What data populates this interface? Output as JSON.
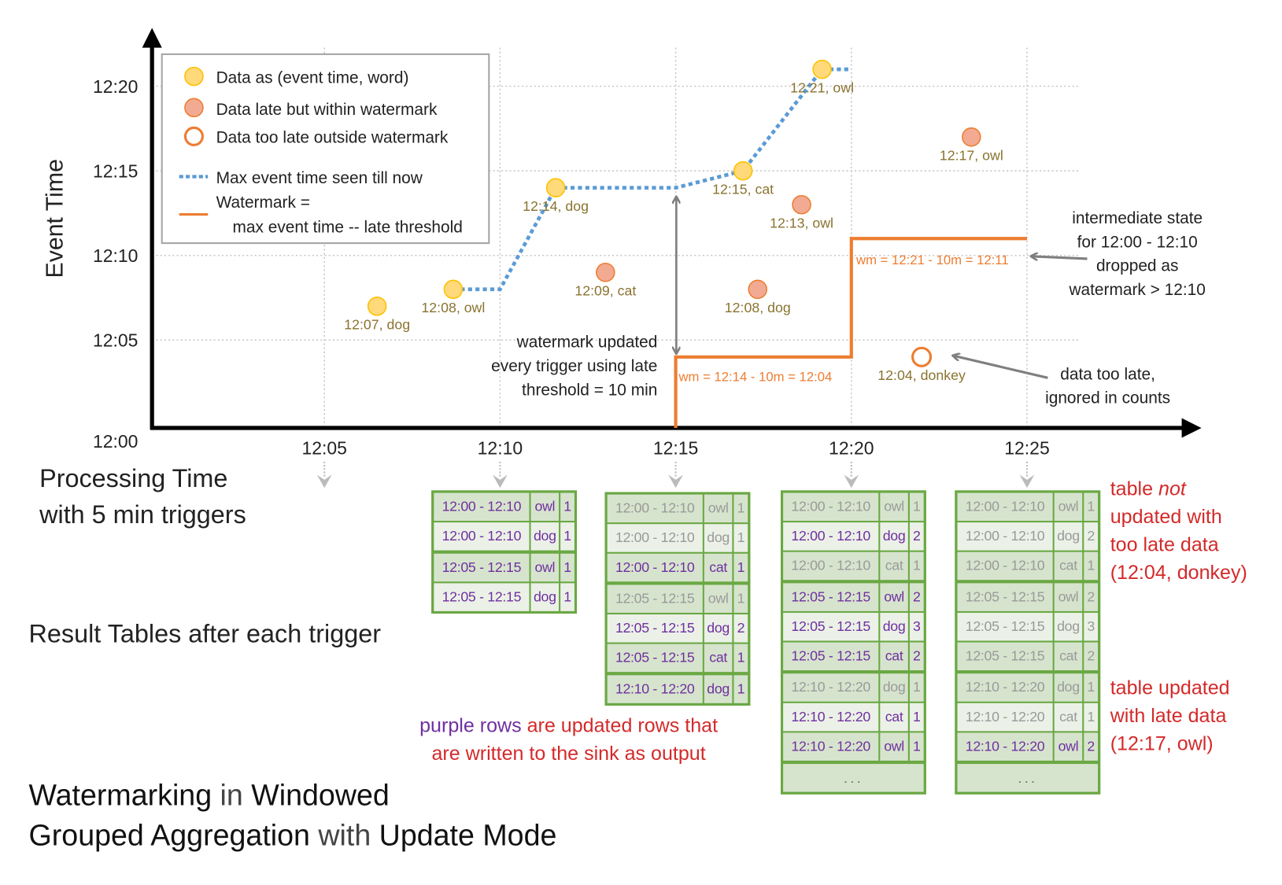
{
  "colors": {
    "on_time_point": "#ffd97a",
    "late_point": "#f2ab92",
    "too_late_stroke": "#ed7d31",
    "max_event_line": "#5b9bd5",
    "watermark_line": "#ed7d31",
    "point_label": "#8a7330",
    "updated_row_text": "#7030a0",
    "note_text": "#d42a2a",
    "table_border": "#6aa843"
  },
  "axes": {
    "y_label": "Event Time",
    "y_ticks": [
      "12:00",
      "12:05",
      "12:10",
      "12:15",
      "12:20"
    ],
    "x_ticks": [
      "12:05",
      "12:10",
      "12:15",
      "12:20",
      "12:25"
    ],
    "x_label_line1": "Processing Time",
    "x_label_line2": "with 5 min triggers"
  },
  "legend": {
    "on_time": "Data as (event time, word)",
    "late": "Data late but within watermark",
    "too_late": "Data too late outside watermark",
    "max_event": "Max event time seen till now",
    "watermark_line1": "Watermark =",
    "watermark_line2": "max event time -- late threshold"
  },
  "points": [
    {
      "label": "12:07, dog",
      "event_time": "12:07",
      "processing_time": "12:06:30",
      "kind": "on_time"
    },
    {
      "label": "12:08, owl",
      "event_time": "12:08",
      "processing_time": "12:08:40",
      "kind": "on_time"
    },
    {
      "label": "12:14, dog",
      "event_time": "12:14",
      "processing_time": "12:11:35",
      "kind": "on_time"
    },
    {
      "label": "12:09, cat",
      "event_time": "12:09",
      "processing_time": "12:13:00",
      "kind": "late"
    },
    {
      "label": "12:15, cat",
      "event_time": "12:15",
      "processing_time": "12:16:55",
      "kind": "on_time"
    },
    {
      "label": "12:08, dog",
      "event_time": "12:08",
      "processing_time": "12:17:20",
      "kind": "late"
    },
    {
      "label": "12:13, owl",
      "event_time": "12:13",
      "processing_time": "12:18:35",
      "kind": "late"
    },
    {
      "label": "12:21, owl",
      "event_time": "12:21",
      "processing_time": "12:19:10",
      "kind": "on_time"
    },
    {
      "label": "12:04, donkey",
      "event_time": "12:04",
      "processing_time": "12:22:00",
      "kind": "too_late"
    },
    {
      "label": "12:17, owl",
      "event_time": "12:17",
      "processing_time": "12:23:25",
      "kind": "late"
    }
  ],
  "max_event_line": [
    [
      "12:08:40",
      "12:08"
    ],
    [
      "12:10:00",
      "12:08"
    ],
    [
      "12:11:35",
      "12:14"
    ],
    [
      "12:15:00",
      "12:14"
    ],
    [
      "12:16:55",
      "12:15"
    ],
    [
      "12:19:10",
      "12:21"
    ],
    [
      "12:20:00",
      "12:21"
    ]
  ],
  "watermark_line": [
    [
      "12:15:00",
      "12:00"
    ],
    [
      "12:15:00",
      "12:04"
    ],
    [
      "12:20:00",
      "12:04"
    ],
    [
      "12:20:00",
      "12:11"
    ],
    [
      "12:25:00",
      "12:11"
    ]
  ],
  "annotations": {
    "wm1": "wm = 12:14 - 10m = 12:04",
    "wm2": "wm = 12:21 - 10m = 12:11",
    "wm_updated": [
      "watermark updated",
      "every trigger using late",
      "threshold = 10 min"
    ],
    "intermediate": [
      "intermediate state",
      "for 12:00 - 12:10",
      "dropped as",
      "watermark > 12:10"
    ],
    "too_late": [
      "data too late,",
      "ignored in counts"
    ]
  },
  "result_tables_label": "Result Tables after each trigger",
  "tables": [
    {
      "groups": [
        [
          {
            "window": "12:00 - 12:10",
            "word": "owl",
            "count": "1",
            "updated": true
          },
          {
            "window": "12:00 - 12:10",
            "word": "dog",
            "count": "1",
            "updated": true
          }
        ],
        [
          {
            "window": "12:05 - 12:15",
            "word": "owl",
            "count": "1",
            "updated": true
          },
          {
            "window": "12:05 - 12:15",
            "word": "dog",
            "count": "1",
            "updated": true
          }
        ]
      ]
    },
    {
      "groups": [
        [
          {
            "window": "12:00 - 12:10",
            "word": "owl",
            "count": "1",
            "updated": false
          },
          {
            "window": "12:00 - 12:10",
            "word": "dog",
            "count": "1",
            "updated": false
          },
          {
            "window": "12:00 - 12:10",
            "word": "cat",
            "count": "1",
            "updated": true
          }
        ],
        [
          {
            "window": "12:05 - 12:15",
            "word": "owl",
            "count": "1",
            "updated": false
          },
          {
            "window": "12:05 - 12:15",
            "word": "dog",
            "count": "2",
            "updated": true
          },
          {
            "window": "12:05 - 12:15",
            "word": "cat",
            "count": "1",
            "updated": true
          }
        ],
        [
          {
            "window": "12:10 - 12:20",
            "word": "dog",
            "count": "1",
            "updated": true
          }
        ]
      ]
    },
    {
      "groups": [
        [
          {
            "window": "12:00 - 12:10",
            "word": "owl",
            "count": "1",
            "updated": false
          },
          {
            "window": "12:00 - 12:10",
            "word": "dog",
            "count": "2",
            "updated": true
          },
          {
            "window": "12:00 - 12:10",
            "word": "cat",
            "count": "1",
            "updated": false
          }
        ],
        [
          {
            "window": "12:05 - 12:15",
            "word": "owl",
            "count": "2",
            "updated": true
          },
          {
            "window": "12:05 - 12:15",
            "word": "dog",
            "count": "3",
            "updated": true
          },
          {
            "window": "12:05 - 12:15",
            "word": "cat",
            "count": "2",
            "updated": true
          }
        ],
        [
          {
            "window": "12:10 - 12:20",
            "word": "dog",
            "count": "1",
            "updated": false
          },
          {
            "window": "12:10 - 12:20",
            "word": "cat",
            "count": "1",
            "updated": true
          },
          {
            "window": "12:10 - 12:20",
            "word": "owl",
            "count": "1",
            "updated": true
          }
        ]
      ],
      "ellipsis": "..."
    },
    {
      "groups": [
        [
          {
            "window": "12:00 - 12:10",
            "word": "owl",
            "count": "1",
            "updated": false
          },
          {
            "window": "12:00 - 12:10",
            "word": "dog",
            "count": "2",
            "updated": false
          },
          {
            "window": "12:00 - 12:10",
            "word": "cat",
            "count": "1",
            "updated": false
          }
        ],
        [
          {
            "window": "12:05 - 12:15",
            "word": "owl",
            "count": "2",
            "updated": false
          },
          {
            "window": "12:05 - 12:15",
            "word": "dog",
            "count": "3",
            "updated": false
          },
          {
            "window": "12:05 - 12:15",
            "word": "cat",
            "count": "2",
            "updated": false
          }
        ],
        [
          {
            "window": "12:10 - 12:20",
            "word": "dog",
            "count": "1",
            "updated": false
          },
          {
            "window": "12:10 - 12:20",
            "word": "cat",
            "count": "1",
            "updated": false
          },
          {
            "window": "12:10 - 12:20",
            "word": "owl",
            "count": "2",
            "updated": true
          }
        ]
      ],
      "ellipsis": "..."
    }
  ],
  "notes": {
    "not_updated": {
      "pre": "table ",
      "em": "not",
      "lines": [
        "updated with",
        "too late data",
        "(12:04, donkey)"
      ]
    },
    "updated": [
      "table updated",
      "with late data",
      "(12:17, owl)"
    ]
  },
  "caption": {
    "purple": "purple rows",
    "rest1": " are updated rows that",
    "line2": "are written to the sink as output"
  },
  "title": {
    "line1": [
      {
        "t": "Watermarking",
        "strong": true
      },
      {
        "t": " in ",
        "strong": false
      },
      {
        "t": "Windowed",
        "strong": true
      }
    ],
    "line2": [
      {
        "t": "Grouped Aggregation",
        "strong": true
      },
      {
        "t": " with ",
        "strong": false
      },
      {
        "t": "Update Mode",
        "strong": true
      }
    ]
  }
}
